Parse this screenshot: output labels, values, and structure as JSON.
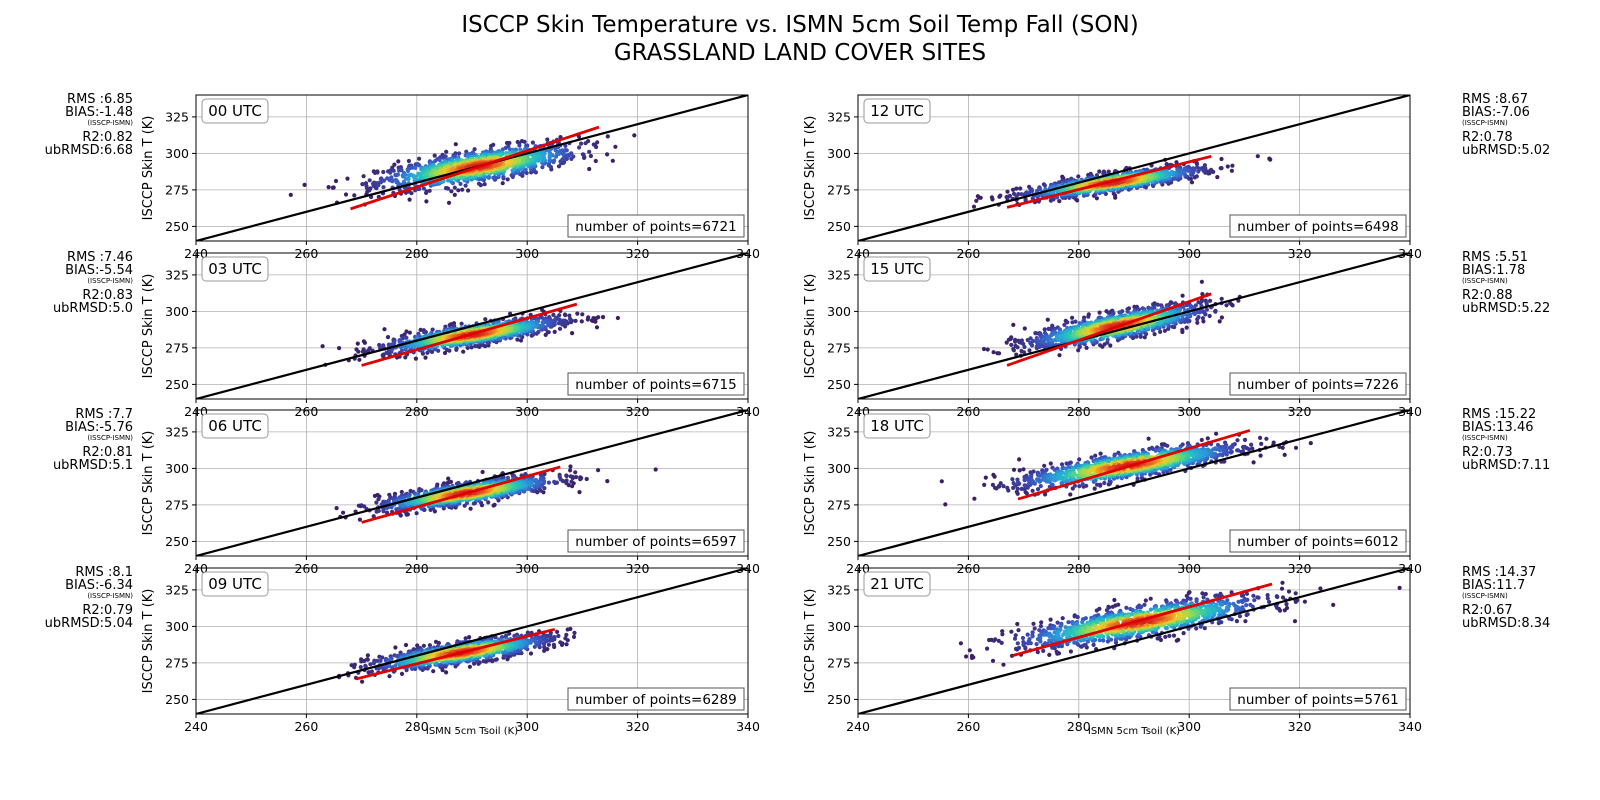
{
  "figure": {
    "title_line1": "ISCCP Skin Temperature vs. ISMN 5cm Soil Temp Fall (SON)",
    "title_line2": "GRASSLAND LAND COVER SITES",
    "xlabel": "ISMN 5cm Tsoil (K)",
    "ylabel": "ISCCP Skin T (K)",
    "bias_note": "(ISSCP-ISMN)"
  },
  "chart_data": [
    {
      "type": "scatter",
      "title": "00 UTC",
      "xlabel": "ISMN 5cm Tsoil (K)",
      "ylabel": "ISCCP Skin T (K)",
      "xlim": [
        240,
        340
      ],
      "ylim": [
        240,
        340
      ],
      "xticks": [
        240,
        260,
        280,
        300,
        320,
        340
      ],
      "yticks": [
        250,
        275,
        300,
        325
      ],
      "grid": true,
      "points_label": "number of points=6721",
      "n_points": 6721,
      "stats": {
        "rms": "RMS :6.85",
        "bias": "BIAS:-1.48",
        "r2": "R2:0.82",
        "ubrmsd": "ubRMSD:6.68"
      },
      "one_to_one": [
        240,
        340
      ],
      "fit": {
        "x": [
          268,
          313
        ],
        "y": [
          262,
          318
        ]
      },
      "cloud": {
        "cx": 291,
        "cy": 291,
        "sx": 9,
        "sy": 12,
        "slope": 1.0
      },
      "stats_side": "left"
    },
    {
      "type": "scatter",
      "title": "03 UTC",
      "xlabel": "ISMN 5cm Tsoil (K)",
      "ylabel": "ISCCP Skin T (K)",
      "xlim": [
        240,
        340
      ],
      "ylim": [
        240,
        340
      ],
      "xticks": [
        240,
        260,
        280,
        300,
        320,
        340
      ],
      "yticks": [
        250,
        275,
        300,
        325
      ],
      "grid": true,
      "points_label": "number of points=6715",
      "n_points": 6715,
      "stats": {
        "rms": "RMS :7.46",
        "bias": "BIAS:-5.54",
        "r2": "R2:0.83",
        "ubrmsd": "ubRMSD:5.0"
      },
      "one_to_one": [
        240,
        340
      ],
      "fit": {
        "x": [
          270,
          309
        ],
        "y": [
          263,
          305
        ]
      },
      "cloud": {
        "cx": 290,
        "cy": 284,
        "sx": 8,
        "sy": 8,
        "slope": 0.95
      },
      "stats_side": "left"
    },
    {
      "type": "scatter",
      "title": "06 UTC",
      "xlabel": "ISMN 5cm Tsoil (K)",
      "ylabel": "ISCCP Skin T (K)",
      "xlim": [
        240,
        340
      ],
      "ylim": [
        240,
        340
      ],
      "xticks": [
        240,
        260,
        280,
        300,
        320,
        340
      ],
      "yticks": [
        250,
        275,
        300,
        325
      ],
      "grid": true,
      "points_label": "number of points=6597",
      "n_points": 6597,
      "stats": {
        "rms": "RMS :7.7",
        "bias": "BIAS:-5.76",
        "r2": "R2:0.81",
        "ubrmsd": "ubRMSD:5.1"
      },
      "one_to_one": [
        240,
        340
      ],
      "fit": {
        "x": [
          270,
          306
        ],
        "y": [
          263,
          301
        ]
      },
      "cloud": {
        "cx": 289,
        "cy": 283,
        "sx": 8,
        "sy": 8,
        "slope": 0.95
      },
      "stats_side": "left"
    },
    {
      "type": "scatter",
      "title": "09 UTC",
      "xlabel": "ISMN 5cm Tsoil (K)",
      "ylabel": "ISCCP Skin T (K)",
      "xlim": [
        240,
        340
      ],
      "ylim": [
        240,
        340
      ],
      "xticks": [
        240,
        260,
        280,
        300,
        320,
        340
      ],
      "yticks": [
        250,
        275,
        300,
        325
      ],
      "grid": true,
      "points_label": "number of points=6289",
      "n_points": 6289,
      "stats": {
        "rms": "RMS :8.1",
        "bias": "BIAS:-6.34",
        "r2": "R2:0.79",
        "ubrmsd": "ubRMSD:5.04"
      },
      "one_to_one": [
        240,
        340
      ],
      "fit": {
        "x": [
          269,
          305
        ],
        "y": [
          264,
          298
        ]
      },
      "cloud": {
        "cx": 288,
        "cy": 282,
        "sx": 8,
        "sy": 8,
        "slope": 0.95
      },
      "stats_side": "left"
    },
    {
      "type": "scatter",
      "title": "12 UTC",
      "xlabel": "ISMN 5cm Tsoil (K)",
      "ylabel": "ISCCP Skin T (K)",
      "xlim": [
        240,
        340
      ],
      "ylim": [
        240,
        340
      ],
      "xticks": [
        240,
        260,
        280,
        300,
        320,
        340
      ],
      "yticks": [
        250,
        275,
        300,
        325
      ],
      "grid": true,
      "points_label": "number of points=6498",
      "n_points": 6498,
      "stats": {
        "rms": "RMS :8.67",
        "bias": "BIAS:-7.06",
        "r2": "R2:0.78",
        "ubrmsd": "ubRMSD:5.02"
      },
      "one_to_one": [
        240,
        340
      ],
      "fit": {
        "x": [
          267,
          304
        ],
        "y": [
          263,
          298
        ]
      },
      "cloud": {
        "cx": 286,
        "cy": 280,
        "sx": 8,
        "sy": 7,
        "slope": 0.9
      },
      "stats_side": "right"
    },
    {
      "type": "scatter",
      "title": "15 UTC",
      "xlabel": "ISMN 5cm Tsoil (K)",
      "ylabel": "ISCCP Skin T (K)",
      "xlim": [
        240,
        340
      ],
      "ylim": [
        240,
        340
      ],
      "xticks": [
        240,
        260,
        280,
        300,
        320,
        340
      ],
      "yticks": [
        250,
        275,
        300,
        325
      ],
      "grid": true,
      "points_label": "number of points=7226",
      "n_points": 7226,
      "stats": {
        "rms": "RMS :5.51",
        "bias": "BIAS:1.78",
        "r2": "R2:0.88",
        "ubrmsd": "ubRMSD:5.22"
      },
      "one_to_one": [
        240,
        340
      ],
      "fit": {
        "x": [
          267,
          304
        ],
        "y": [
          263,
          312
        ]
      },
      "cloud": {
        "cx": 287,
        "cy": 290,
        "sx": 8,
        "sy": 10,
        "slope": 1.2
      },
      "stats_side": "right"
    },
    {
      "type": "scatter",
      "title": "18 UTC",
      "xlabel": "ISMN 5cm Tsoil (K)",
      "ylabel": "ISCCP Skin T (K)",
      "xlim": [
        240,
        340
      ],
      "ylim": [
        240,
        340
      ],
      "xticks": [
        240,
        260,
        280,
        300,
        320,
        340
      ],
      "yticks": [
        250,
        275,
        300,
        325
      ],
      "grid": true,
      "points_label": "number of points=6012",
      "n_points": 6012,
      "stats": {
        "rms": "RMS :15.22",
        "bias": "BIAS:13.46",
        "r2": "R2:0.73",
        "ubrmsd": "ubRMSD:7.11"
      },
      "one_to_one": [
        240,
        340
      ],
      "fit": {
        "x": [
          269,
          311
        ],
        "y": [
          279,
          326
        ]
      },
      "cloud": {
        "cx": 289,
        "cy": 302,
        "sx": 10,
        "sy": 10,
        "slope": 1.0
      },
      "stats_side": "right"
    },
    {
      "type": "scatter",
      "title": "21 UTC",
      "xlabel": "ISMN 5cm Tsoil (K)",
      "ylabel": "ISCCP Skin T (K)",
      "xlim": [
        240,
        340
      ],
      "ylim": [
        240,
        340
      ],
      "xticks": [
        240,
        260,
        280,
        300,
        320,
        340
      ],
      "yticks": [
        250,
        275,
        300,
        325
      ],
      "grid": true,
      "points_label": "number of points=5761",
      "n_points": 5761,
      "stats": {
        "rms": "RMS :14.37",
        "bias": "BIAS:11.7",
        "r2": "R2:0.67",
        "ubrmsd": "ubRMSD:8.34"
      },
      "one_to_one": [
        240,
        340
      ],
      "fit": {
        "x": [
          268,
          315
        ],
        "y": [
          280,
          329
        ]
      },
      "cloud": {
        "cx": 291,
        "cy": 303,
        "sx": 11,
        "sy": 12,
        "slope": 1.0
      },
      "stats_side": "right"
    }
  ],
  "colors": {
    "one_to_one_line": "#000000",
    "fit_line": "#e00000",
    "grid": "#b0b0b0",
    "density_low": "#3b1f5e",
    "density_mid": "#28c8b4",
    "density_high": "#d21f1f"
  }
}
